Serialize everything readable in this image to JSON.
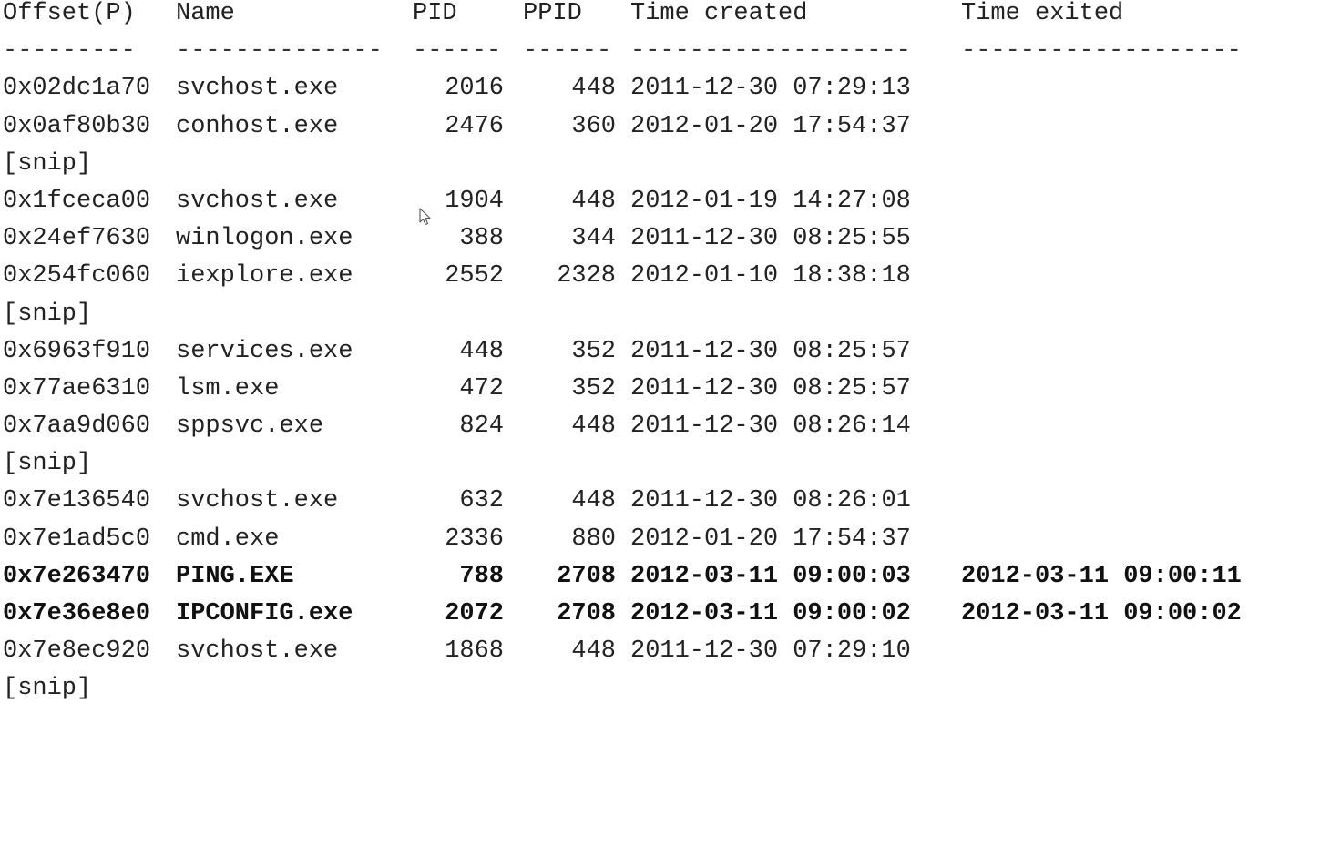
{
  "header": {
    "offset": "Offset(P)",
    "name": "Name",
    "pid": "PID",
    "ppid": "PPID",
    "created": "Time created",
    "exited": "Time exited"
  },
  "separator": {
    "offset": "---------",
    "name": "--------------",
    "pid": "------",
    "ppid": "------",
    "created": "-------------------",
    "exited": "-------------------"
  },
  "snip_text": "[snip]",
  "rows": [
    {
      "offset": "0x02dc1a70",
      "name": "svchost.exe",
      "pid": "2016",
      "ppid": "448",
      "created": "2011-12-30 07:29:13",
      "exited": ""
    },
    {
      "offset": "0x0af80b30",
      "name": "conhost.exe",
      "pid": "2476",
      "ppid": "360",
      "created": "2012-01-20 17:54:37",
      "exited": ""
    },
    {
      "offset": "0x1fceca00",
      "name": "svchost.exe",
      "pid": "1904",
      "ppid": "448",
      "created": "2012-01-19 14:27:08",
      "exited": ""
    },
    {
      "offset": "0x24ef7630",
      "name": "winlogon.exe",
      "pid": "388",
      "ppid": "344",
      "created": "2011-12-30 08:25:55",
      "exited": ""
    },
    {
      "offset": "0x254fc060",
      "name": "iexplore.exe",
      "pid": "2552",
      "ppid": "2328",
      "created": "2012-01-10 18:38:18",
      "exited": ""
    },
    {
      "offset": "0x6963f910",
      "name": "services.exe",
      "pid": "448",
      "ppid": "352",
      "created": "2011-12-30 08:25:57",
      "exited": ""
    },
    {
      "offset": "0x77ae6310",
      "name": "lsm.exe",
      "pid": "472",
      "ppid": "352",
      "created": "2011-12-30 08:25:57",
      "exited": ""
    },
    {
      "offset": "0x7aa9d060",
      "name": "sppsvc.exe",
      "pid": "824",
      "ppid": "448",
      "created": "2011-12-30 08:26:14",
      "exited": ""
    },
    {
      "offset": "0x7e136540",
      "name": "svchost.exe",
      "pid": "632",
      "ppid": "448",
      "created": "2011-12-30 08:26:01",
      "exited": ""
    },
    {
      "offset": "0x7e1ad5c0",
      "name": "cmd.exe",
      "pid": "2336",
      "ppid": "880",
      "created": "2012-01-20 17:54:37",
      "exited": ""
    },
    {
      "offset": "0x7e263470",
      "name": "PING.EXE",
      "pid": "788",
      "ppid": "2708",
      "created": "2012-03-11 09:00:03",
      "exited": "2012-03-11 09:00:11"
    },
    {
      "offset": "0x7e36e8e0",
      "name": "IPCONFIG.exe",
      "pid": "2072",
      "ppid": "2708",
      "created": "2012-03-11 09:00:02",
      "exited": "2012-03-11 09:00:02"
    },
    {
      "offset": "0x7e8ec920",
      "name": "svchost.exe",
      "pid": "1868",
      "ppid": "448",
      "created": "2011-12-30 07:29:10",
      "exited": ""
    }
  ],
  "icons": {
    "cursor": "mouse-pointer-icon"
  }
}
